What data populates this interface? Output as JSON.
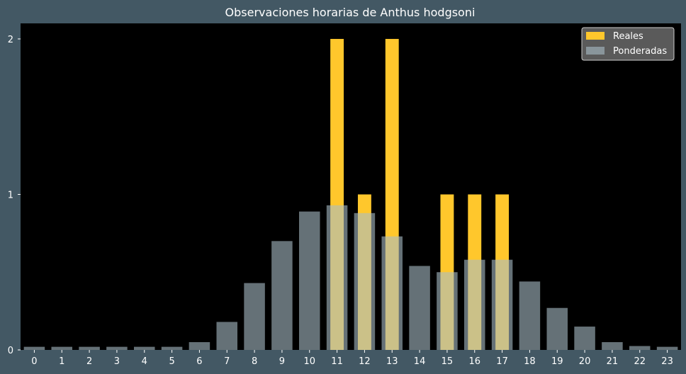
{
  "chart_data": {
    "type": "bar",
    "title": "Observaciones horarias de Anthus hodgsoni",
    "xlabel": "",
    "ylabel": "",
    "categories": [
      "0",
      "1",
      "2",
      "3",
      "4",
      "5",
      "6",
      "7",
      "8",
      "9",
      "10",
      "11",
      "12",
      "13",
      "14",
      "15",
      "16",
      "17",
      "18",
      "19",
      "20",
      "21",
      "22",
      "23"
    ],
    "ylim": [
      0,
      2.1
    ],
    "yticks": [
      "0",
      "1",
      "2"
    ],
    "grid": false,
    "legend_position": "top-right",
    "series": [
      {
        "name": "Reales",
        "color": "#ffc72c",
        "values": [
          0,
          0,
          0,
          0,
          0,
          0,
          0,
          0,
          0,
          0,
          0,
          2,
          1,
          2,
          0,
          1,
          1,
          1,
          0,
          0,
          0,
          0,
          0,
          0
        ]
      },
      {
        "name": "Ponderadas",
        "color": "#a9bcc6",
        "values": [
          0.02,
          0.02,
          0.02,
          0.02,
          0.02,
          0.02,
          0.05,
          0.18,
          0.43,
          0.7,
          0.89,
          0.93,
          0.88,
          0.73,
          0.54,
          0.5,
          0.58,
          0.58,
          0.44,
          0.27,
          0.15,
          0.05,
          0.025,
          0.02
        ]
      }
    ]
  }
}
